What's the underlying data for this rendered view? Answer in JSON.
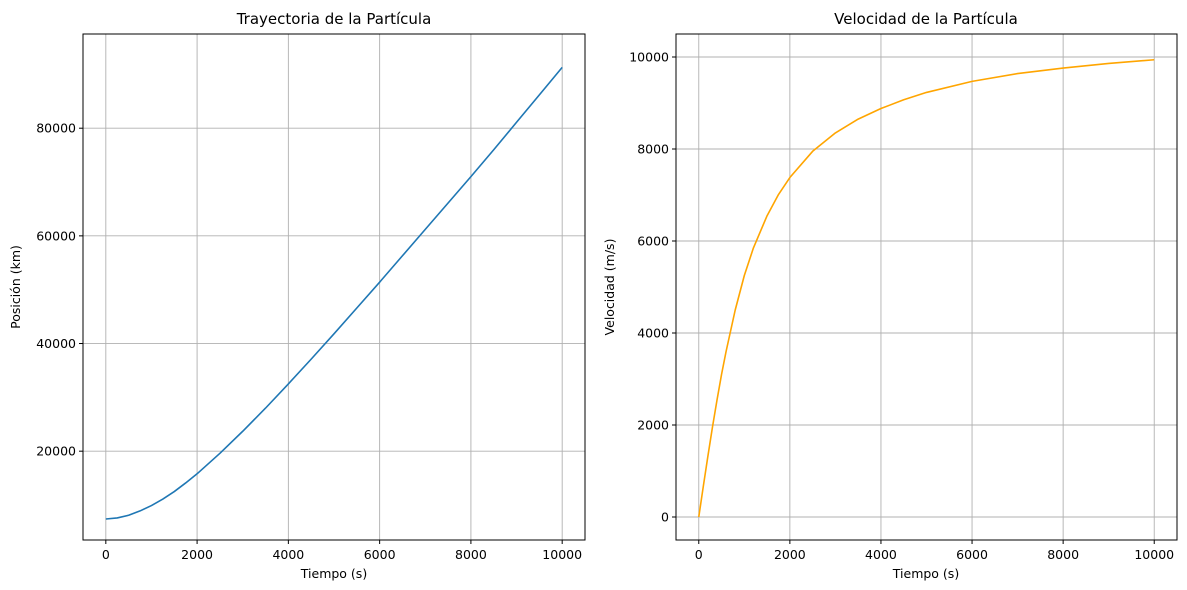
{
  "chart_data": [
    {
      "type": "line",
      "title": "Trayectoria de la Partícula",
      "xlabel": "Tiempo (s)",
      "ylabel": "Posición (km)",
      "xlim": [
        -500,
        10500
      ],
      "ylim": [
        3500,
        97500
      ],
      "xticks": [
        0,
        2000,
        4000,
        6000,
        8000,
        10000
      ],
      "yticks": [
        20000,
        40000,
        60000,
        80000
      ],
      "grid": true,
      "color": "#1f77b4",
      "series": [
        {
          "x": [
            0,
            250,
            500,
            750,
            1000,
            1250,
            1500,
            1750,
            2000,
            2500,
            3000,
            3500,
            4000,
            4500,
            5000,
            5500,
            6000,
            6500,
            7000,
            7500,
            8000,
            8500,
            9000,
            9500,
            10000
          ],
          "y": [
            7400,
            7600,
            8100,
            8900,
            9900,
            11100,
            12500,
            14100,
            15800,
            19600,
            23700,
            28000,
            32500,
            37100,
            41800,
            46600,
            51400,
            56300,
            61200,
            66100,
            71000,
            76000,
            81100,
            86200,
            91300
          ]
        }
      ]
    },
    {
      "type": "line",
      "title": "Velocidad de la Partícula",
      "xlabel": "Tiempo (s)",
      "ylabel": "Velocidad (m/s)",
      "xlim": [
        -500,
        10500
      ],
      "ylim": [
        -500,
        10500
      ],
      "xticks": [
        0,
        2000,
        4000,
        6000,
        8000,
        10000
      ],
      "yticks": [
        0,
        2000,
        4000,
        6000,
        8000,
        10000
      ],
      "grid": true,
      "color": "#ffa500",
      "series": [
        {
          "x": [
            0,
            100,
            200,
            300,
            400,
            500,
            600,
            800,
            1000,
            1200,
            1500,
            1750,
            2000,
            2500,
            3000,
            3500,
            4000,
            4500,
            5000,
            6000,
            7000,
            8000,
            9000,
            10000
          ],
          "y": [
            0,
            670,
            1320,
            1950,
            2540,
            3100,
            3600,
            4500,
            5250,
            5850,
            6550,
            7010,
            7380,
            7950,
            8350,
            8650,
            8880,
            9070,
            9230,
            9470,
            9640,
            9760,
            9860,
            9940
          ]
        }
      ]
    }
  ]
}
